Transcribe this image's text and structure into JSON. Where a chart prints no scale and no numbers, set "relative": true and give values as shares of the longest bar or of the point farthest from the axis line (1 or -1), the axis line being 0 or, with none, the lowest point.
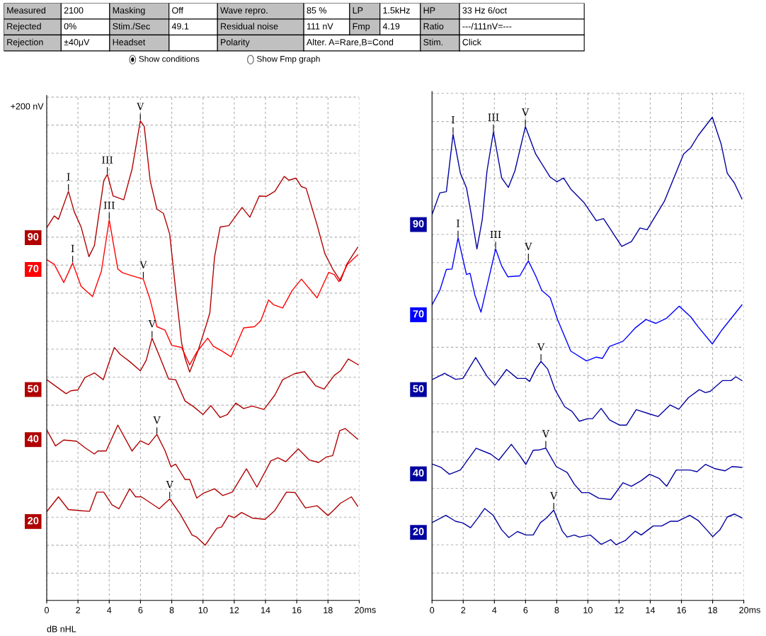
{
  "chart_data": [
    {
      "type": "other",
      "annotations": [
        "Measured",
        "2100",
        "Masking",
        "Off",
        "Wave repro.",
        "85 %",
        "LP",
        "1.5kHz",
        "HP",
        "33 Hz 6/oct",
        "Rejected",
        "0%",
        "Stim./Sec",
        "49.1",
        "Residual noise",
        "111 nV",
        "Fmp",
        "4.19",
        "Ratio",
        "---/111nV=---",
        "Rejection",
        "±40μV",
        "Headset",
        "Polarity",
        "Alter. A=Rare,B=Cond",
        "Stim.",
        "Click",
        "Show conditions",
        "Show Fmp graph"
      ]
    },
    {
      "type": "line",
      "relative": true,
      "xlabel": "ms",
      "xlim": [
        0,
        20
      ],
      "xticks": [
        0,
        2,
        4,
        6,
        8,
        10,
        12,
        14,
        16,
        18,
        20
      ],
      "grid": true,
      "tick_labels": "x",
      "series": [
        {
          "name": "90",
          "color": "#b00000",
          "x": [
            0,
            0.48,
            0.75,
            1.39,
            1.76,
            2.2,
            2.7,
            3.05,
            3.65,
            3.88,
            4.25,
            4.93,
            5.46,
            5.99,
            6.24,
            6.62,
            7.05,
            7.47,
            7.87,
            8.25,
            8.63,
            8.85,
            9.15,
            9.68,
            10.2,
            10.44,
            10.74,
            11.1,
            11.65,
            12.5,
            13.0,
            13.6,
            14.05,
            14.6,
            15.2,
            15.5,
            15.95,
            16.3,
            16.6,
            17.3,
            17.8,
            18.3,
            18.8,
            19.2,
            19.9
          ],
          "values": [
            0.748,
            0.776,
            0.768,
            0.834,
            0.786,
            0.75,
            0.68,
            0.706,
            0.859,
            0.874,
            0.823,
            0.814,
            0.886,
            1.0,
            0.987,
            0.859,
            0.792,
            0.782,
            0.733,
            0.602,
            0.477,
            0.441,
            0.408,
            0.458,
            0.518,
            0.548,
            0.679,
            0.75,
            0.753,
            0.796,
            0.773,
            0.823,
            0.822,
            0.834,
            0.869,
            0.86,
            0.865,
            0.845,
            0.841,
            0.755,
            0.687,
            0.651,
            0.623,
            0.662,
            0.702
          ]
        },
        {
          "name": "70",
          "color": "#ff0000",
          "x": [
            0,
            0.48,
            1.09,
            1.66,
            2.2,
            2.93,
            3.5,
            4.0,
            4.55,
            4.85,
            5.46,
            6.18,
            6.6,
            7.05,
            7.57,
            8.0,
            8.63,
            9.15,
            9.6,
            10.3,
            10.66,
            11.2,
            11.8,
            12.6,
            13.3,
            13.7,
            14.2,
            14.5,
            15.1,
            15.7,
            16.3,
            17.3,
            18.05,
            18.4,
            18.7,
            19.25,
            19.9
          ],
          "values": [
            0.673,
            0.662,
            0.619,
            0.665,
            0.61,
            0.586,
            0.646,
            0.767,
            0.651,
            0.642,
            0.635,
            0.627,
            0.581,
            0.515,
            0.507,
            0.471,
            0.466,
            0.425,
            0.455,
            0.488,
            0.469,
            0.458,
            0.444,
            0.512,
            0.515,
            0.529,
            0.578,
            0.567,
            0.559,
            0.6,
            0.627,
            0.583,
            0.643,
            0.638,
            0.621,
            0.662,
            0.684
          ]
        },
        {
          "name": "50",
          "color": "#b00000",
          "x": [
            0,
            1.24,
            1.54,
            2.0,
            2.44,
            3.05,
            3.62,
            3.98,
            4.33,
            4.7,
            5.3,
            5.99,
            6.37,
            6.74,
            7.2,
            7.8,
            8.25,
            8.85,
            9.38,
            10.0,
            10.5,
            11.1,
            11.56,
            12.1,
            12.6,
            13.15,
            13.9,
            14.6,
            15.1,
            15.85,
            16.5,
            17.2,
            17.75,
            18.4,
            18.8,
            19.3,
            19.95
          ],
          "values": [
            0.39,
            0.357,
            0.364,
            0.366,
            0.395,
            0.406,
            0.39,
            0.43,
            0.466,
            0.45,
            0.433,
            0.411,
            0.436,
            0.488,
            0.447,
            0.392,
            0.39,
            0.34,
            0.327,
            0.308,
            0.329,
            0.301,
            0.308,
            0.335,
            0.322,
            0.328,
            0.32,
            0.354,
            0.39,
            0.404,
            0.409,
            0.376,
            0.368,
            0.4,
            0.411,
            0.439,
            0.425
          ]
        },
        {
          "name": "40",
          "color": "#b00000",
          "x": [
            0,
            0.56,
            1.09,
            1.92,
            2.44,
            3.05,
            3.27,
            3.8,
            4.55,
            5.46,
            5.99,
            6.52,
            7.05,
            7.57,
            7.95,
            8.25,
            8.85,
            9.15,
            9.6,
            10.0,
            10.74,
            11.27,
            11.87,
            12.78,
            13.45,
            14.35,
            14.8,
            15.3,
            16.1,
            16.8,
            17.4,
            17.9,
            18.3,
            18.75,
            19.1,
            19.9
          ],
          "values": [
            0.272,
            0.234,
            0.248,
            0.245,
            0.23,
            0.215,
            0.222,
            0.222,
            0.283,
            0.222,
            0.246,
            0.237,
            0.261,
            0.223,
            0.185,
            0.191,
            0.155,
            0.155,
            0.111,
            0.122,
            0.133,
            0.117,
            0.125,
            0.18,
            0.137,
            0.199,
            0.206,
            0.197,
            0.227,
            0.201,
            0.195,
            0.208,
            0.211,
            0.27,
            0.275,
            0.25
          ]
        },
        {
          "name": "20",
          "color": "#b00000",
          "x": [
            0,
            0.75,
            1.39,
            2.29,
            2.74,
            3.2,
            3.65,
            4.18,
            4.63,
            5.31,
            5.69,
            6.06,
            7.2,
            7.87,
            8.55,
            9.3,
            9.6,
            10.14,
            10.89,
            11.19,
            11.64,
            12.0,
            12.47,
            13.15,
            13.97,
            14.58,
            15.34,
            15.9,
            16.55,
            17.3,
            18.0,
            18.4,
            18.8,
            19.5,
            19.9
          ],
          "values": [
            0.079,
            0.114,
            0.084,
            0.081,
            0.08,
            0.125,
            0.125,
            0.095,
            0.086,
            0.133,
            0.114,
            0.114,
            0.086,
            0.109,
            0.073,
            0.024,
            0.019,
            0.0,
            0.04,
            0.043,
            0.07,
            0.065,
            0.077,
            0.064,
            0.061,
            0.081,
            0.125,
            0.124,
            0.088,
            0.093,
            0.07,
            0.084,
            0.099,
            0.114,
            0.092
          ]
        }
      ],
      "annotations": [
        "+200 nV",
        "dB nHL",
        {
          "text": "I",
          "x": 1.39,
          "y": 0.834
        },
        {
          "text": "III",
          "x": 3.88,
          "y": 0.874
        },
        {
          "text": "V",
          "x": 5.99,
          "y": 1.0
        },
        {
          "text": "I",
          "x": 1.66,
          "y": 0.665
        },
        {
          "text": "III",
          "x": 4.0,
          "y": 0.767
        },
        {
          "text": "V",
          "x": 6.18,
          "y": 0.627
        },
        {
          "text": "V",
          "x": 6.74,
          "y": 0.488
        },
        {
          "text": "V",
          "x": 7.05,
          "y": 0.261
        },
        {
          "text": "V",
          "x": 7.87,
          "y": 0.109
        }
      ]
    },
    {
      "type": "line",
      "relative": true,
      "xlabel": "ms",
      "xlim": [
        0,
        20
      ],
      "xticks": [
        0,
        2,
        4,
        6,
        8,
        10,
        12,
        14,
        16,
        18,
        20
      ],
      "grid": true,
      "tick_labels": "x",
      "series": [
        {
          "name": "90",
          "color": "#0000a0",
          "x": [
            0,
            0.5,
            0.92,
            1.35,
            1.82,
            2.21,
            2.52,
            2.88,
            3.22,
            3.53,
            3.94,
            4.47,
            4.9,
            5.32,
            5.99,
            6.65,
            7.58,
            8.02,
            8.44,
            8.9,
            9.76,
            10.54,
            11.0,
            12.17,
            12.79,
            13.34,
            13.8,
            14.9,
            16.14,
            16.6,
            17.07,
            17.98,
            18.55,
            18.94,
            19.4,
            19.88
          ],
          "values": [
            0.772,
            0.823,
            0.826,
            0.96,
            0.869,
            0.835,
            0.772,
            0.692,
            0.76,
            0.875,
            0.966,
            0.858,
            0.836,
            0.875,
            0.978,
            0.914,
            0.86,
            0.849,
            0.858,
            0.832,
            0.8,
            0.758,
            0.763,
            0.698,
            0.709,
            0.741,
            0.737,
            0.803,
            0.914,
            0.929,
            0.957,
            1.0,
            0.937,
            0.869,
            0.846,
            0.809
          ]
        },
        {
          "name": "70",
          "color": "#0000ff",
          "x": [
            0,
            0.5,
            0.92,
            1.28,
            1.67,
            2.21,
            2.44,
            2.75,
            3.14,
            3.61,
            4.08,
            4.47,
            4.86,
            5.63,
            6.18,
            6.65,
            7.04,
            7.58,
            8.05,
            8.9,
            9.91,
            10.54,
            10.93,
            11.39,
            12.25,
            13.03,
            13.73,
            14.35,
            15.05,
            15.86,
            16.6,
            17.07,
            17.98,
            18.63,
            19.88
          ],
          "values": [
            0.561,
            0.595,
            0.644,
            0.645,
            0.718,
            0.632,
            0.635,
            0.584,
            0.544,
            0.618,
            0.692,
            0.652,
            0.627,
            0.629,
            0.664,
            0.629,
            0.595,
            0.578,
            0.527,
            0.453,
            0.43,
            0.439,
            0.436,
            0.464,
            0.476,
            0.507,
            0.527,
            0.518,
            0.53,
            0.558,
            0.533,
            0.51,
            0.47,
            0.504,
            0.561
          ]
        },
        {
          "name": "50",
          "color": "#0000a0",
          "x": [
            0,
            0.81,
            1.51,
            1.98,
            2.8,
            3.53,
            4.03,
            4.78,
            5.48,
            6.02,
            6.26,
            6.65,
            6.99,
            7.42,
            7.89,
            8.51,
            8.98,
            9.45,
            9.99,
            10.3,
            10.85,
            11.39,
            12.02,
            12.48,
            13.1,
            13.96,
            14.51,
            15.28,
            15.83,
            16.45,
            17.15,
            17.54,
            17.85,
            18.63,
            19.18,
            19.49,
            19.88
          ],
          "values": [
            0.386,
            0.401,
            0.387,
            0.389,
            0.438,
            0.394,
            0.373,
            0.41,
            0.389,
            0.389,
            0.382,
            0.411,
            0.429,
            0.411,
            0.363,
            0.323,
            0.312,
            0.289,
            0.295,
            0.295,
            0.319,
            0.292,
            0.28,
            0.28,
            0.316,
            0.306,
            0.3,
            0.327,
            0.317,
            0.344,
            0.363,
            0.356,
            0.359,
            0.384,
            0.384,
            0.393,
            0.384
          ]
        },
        {
          "name": "40",
          "color": "#0000a0",
          "x": [
            0,
            0.58,
            1.12,
            1.82,
            2.83,
            3.77,
            4.28,
            5.09,
            5.63,
            6.02,
            6.49,
            6.88,
            7.3,
            7.97,
            8.67,
            9.14,
            9.6,
            10.07,
            10.69,
            11.47,
            12.25,
            12.79,
            13.42,
            13.96,
            14.58,
            15.05,
            15.67,
            16.53,
            17.0,
            17.54,
            18.16,
            18.79,
            19.25,
            19.88
          ],
          "values": [
            0.189,
            0.181,
            0.165,
            0.175,
            0.226,
            0.212,
            0.198,
            0.235,
            0.209,
            0.188,
            0.221,
            0.222,
            0.226,
            0.183,
            0.169,
            0.141,
            0.122,
            0.122,
            0.109,
            0.106,
            0.145,
            0.137,
            0.15,
            0.165,
            0.155,
            0.137,
            0.175,
            0.175,
            0.171,
            0.188,
            0.178,
            0.173,
            0.183,
            0.181
          ]
        },
        {
          "name": "20",
          "color": "#0000a0",
          "x": [
            0,
            0.89,
            1.51,
            1.98,
            2.47,
            2.91,
            3.38,
            3.92,
            4.47,
            4.93,
            5.48,
            6.02,
            6.49,
            6.96,
            7.35,
            7.81,
            8.36,
            8.67,
            9.14,
            9.45,
            10.15,
            10.85,
            11.47,
            11.81,
            12.4,
            13.03,
            13.42,
            14.19,
            14.74,
            15.28,
            15.75,
            16.53,
            17.07,
            17.62,
            18.01,
            18.47,
            18.94,
            19.41,
            19.88
          ],
          "values": [
            0.052,
            0.069,
            0.055,
            0.051,
            0.04,
            0.061,
            0.085,
            0.069,
            0.035,
            0.017,
            0.031,
            0.023,
            0.023,
            0.052,
            0.063,
            0.081,
            0.032,
            0.018,
            0.023,
            0.018,
            0.023,
            0.001,
            0.012,
            0.0,
            0.01,
            0.032,
            0.023,
            0.044,
            0.044,
            0.055,
            0.055,
            0.069,
            0.057,
            0.035,
            0.019,
            0.035,
            0.065,
            0.072,
            0.063
          ]
        }
      ],
      "annotations": [
        {
          "text": "I",
          "x": 1.35,
          "y": 0.96
        },
        {
          "text": "III",
          "x": 3.94,
          "y": 0.966
        },
        {
          "text": "V",
          "x": 5.99,
          "y": 0.978
        },
        {
          "text": "I",
          "x": 1.67,
          "y": 0.718
        },
        {
          "text": "III",
          "x": 4.08,
          "y": 0.692
        },
        {
          "text": "V",
          "x": 6.18,
          "y": 0.664
        },
        {
          "text": "V",
          "x": 6.99,
          "y": 0.429
        },
        {
          "text": "V",
          "x": 7.3,
          "y": 0.226
        },
        {
          "text": "V",
          "x": 7.81,
          "y": 0.081
        }
      ]
    }
  ]
}
